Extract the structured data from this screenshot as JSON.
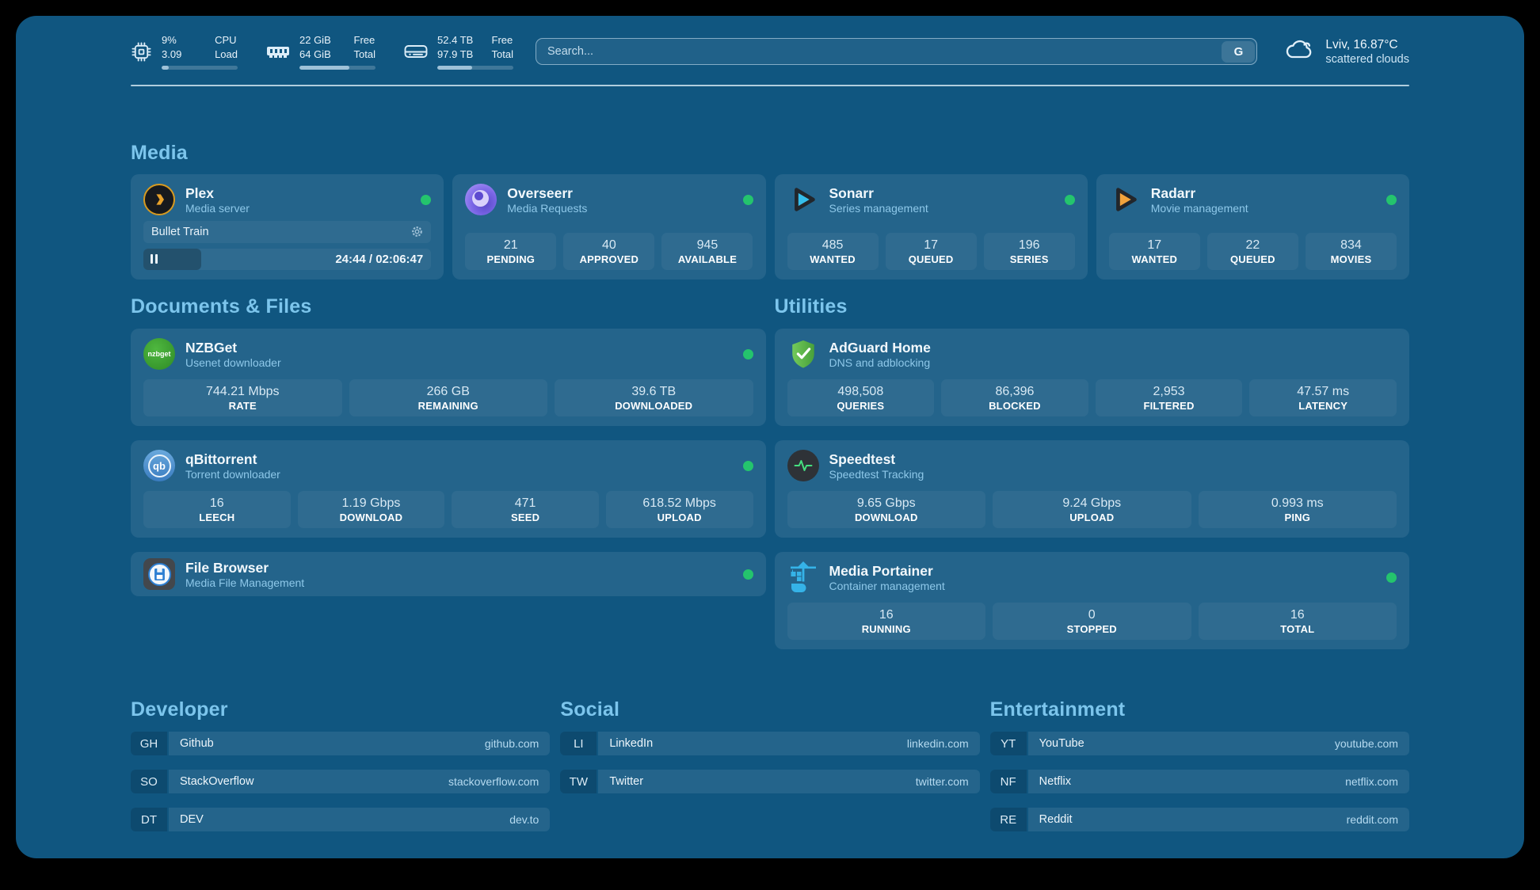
{
  "colors": {
    "online": "#24c46d",
    "accent_title": "#7cc5ec"
  },
  "topbar": {
    "cpu": {
      "v1": "9%",
      "v2": "3.09",
      "l1": "CPU",
      "l2": "Load",
      "pct": 9
    },
    "ram": {
      "v1": "22 GiB",
      "v2": "64 GiB",
      "l1": "Free",
      "l2": "Total",
      "pct": 66
    },
    "disk": {
      "v1": "52.4 TB",
      "v2": "97.9 TB",
      "l1": "Free",
      "l2": "Total",
      "pct": 46
    },
    "search": {
      "placeholder": "Search...",
      "engine_button": "G"
    },
    "weather": {
      "location": "Lviv, 16.87°C",
      "condition": "scattered clouds"
    }
  },
  "media": {
    "title": "Media",
    "plex": {
      "name": "Plex",
      "subtitle": "Media server",
      "now_playing": "Bullet Train",
      "time": "24:44 / 02:06:47",
      "progress_pct": 20
    },
    "overseerr": {
      "name": "Overseerr",
      "subtitle": "Media Requests",
      "stats": [
        {
          "value": "21",
          "label": "PENDING"
        },
        {
          "value": "40",
          "label": "APPROVED"
        },
        {
          "value": "945",
          "label": "AVAILABLE"
        }
      ]
    },
    "sonarr": {
      "name": "Sonarr",
      "subtitle": "Series management",
      "stats": [
        {
          "value": "485",
          "label": "WANTED"
        },
        {
          "value": "17",
          "label": "QUEUED"
        },
        {
          "value": "196",
          "label": "SERIES"
        }
      ]
    },
    "radarr": {
      "name": "Radarr",
      "subtitle": "Movie management",
      "stats": [
        {
          "value": "17",
          "label": "WANTED"
        },
        {
          "value": "22",
          "label": "QUEUED"
        },
        {
          "value": "834",
          "label": "MOVIES"
        }
      ]
    }
  },
  "documents": {
    "title": "Documents & Files",
    "nzbget": {
      "name": "NZBGet",
      "subtitle": "Usenet downloader",
      "icon_text": "nzbget",
      "stats": [
        {
          "value": "744.21 Mbps",
          "label": "RATE"
        },
        {
          "value": "266 GB",
          "label": "REMAINING"
        },
        {
          "value": "39.6 TB",
          "label": "DOWNLOADED"
        }
      ]
    },
    "qbittorrent": {
      "name": "qBittorrent",
      "subtitle": "Torrent downloader",
      "icon_text": "qb",
      "stats": [
        {
          "value": "16",
          "label": "LEECH"
        },
        {
          "value": "1.19 Gbps",
          "label": "DOWNLOAD"
        },
        {
          "value": "471",
          "label": "SEED"
        },
        {
          "value": "618.52 Mbps",
          "label": "UPLOAD"
        }
      ]
    },
    "filebrowser": {
      "name": "File Browser",
      "subtitle": "Media File Management"
    }
  },
  "utilities": {
    "title": "Utilities",
    "adguard": {
      "name": "AdGuard Home",
      "subtitle": "DNS and adblocking",
      "stats": [
        {
          "value": "498,508",
          "label": "QUERIES"
        },
        {
          "value": "86,396",
          "label": "BLOCKED"
        },
        {
          "value": "2,953",
          "label": "FILTERED"
        },
        {
          "value": "47.57 ms",
          "label": "LATENCY"
        }
      ]
    },
    "speedtest": {
      "name": "Speedtest",
      "subtitle": "Speedtest Tracking",
      "stats": [
        {
          "value": "9.65 Gbps",
          "label": "DOWNLOAD"
        },
        {
          "value": "9.24 Gbps",
          "label": "UPLOAD"
        },
        {
          "value": "0.993 ms",
          "label": "PING"
        }
      ]
    },
    "portainer": {
      "name": "Media Portainer",
      "subtitle": "Container management",
      "stats": [
        {
          "value": "16",
          "label": "RUNNING"
        },
        {
          "value": "0",
          "label": "STOPPED"
        },
        {
          "value": "16",
          "label": "TOTAL"
        }
      ]
    }
  },
  "bookmarks": {
    "developer": {
      "title": "Developer",
      "items": [
        {
          "abbr": "GH",
          "name": "Github",
          "url": "github.com"
        },
        {
          "abbr": "SO",
          "name": "StackOverflow",
          "url": "stackoverflow.com"
        },
        {
          "abbr": "DT",
          "name": "DEV",
          "url": "dev.to"
        }
      ]
    },
    "social": {
      "title": "Social",
      "items": [
        {
          "abbr": "LI",
          "name": "LinkedIn",
          "url": "linkedin.com"
        },
        {
          "abbr": "TW",
          "name": "Twitter",
          "url": "twitter.com"
        }
      ]
    },
    "entertainment": {
      "title": "Entertainment",
      "items": [
        {
          "abbr": "YT",
          "name": "YouTube",
          "url": "youtube.com"
        },
        {
          "abbr": "NF",
          "name": "Netflix",
          "url": "netflix.com"
        },
        {
          "abbr": "RE",
          "name": "Reddit",
          "url": "reddit.com"
        }
      ]
    }
  }
}
